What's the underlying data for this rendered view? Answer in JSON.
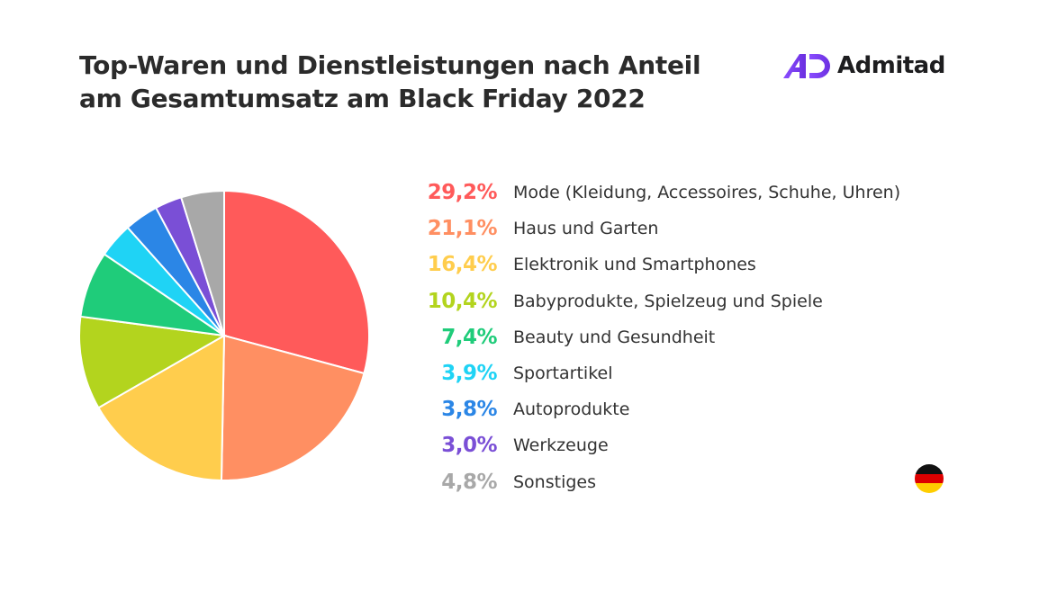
{
  "header": {
    "title_line1": "Top-Waren und Dienstleistungen nach Anteil",
    "title_line2": "am Gesamtumsatz am Black Friday 2022",
    "logo_text": "Admitad",
    "logo_color": "#7b3fe4"
  },
  "chart_data": {
    "type": "pie",
    "title": "Top-Waren und Dienstleistungen nach Anteil am Gesamtumsatz am Black Friday 2022",
    "start": "top",
    "direction": "clockwise",
    "legend": "right",
    "slices": [
      {
        "label": "Mode (Kleidung, Accessoires, Schuhe, Uhren)",
        "value": 29.2,
        "display": "29,2%",
        "color": "#ff5a5a"
      },
      {
        "label": "Haus und Garten",
        "value": 21.1,
        "display": "21,1%",
        "color": "#ff8f62"
      },
      {
        "label": "Elektronik und Smartphones",
        "value": 16.4,
        "display": "16,4%",
        "color": "#ffcd4d"
      },
      {
        "label": "Babyprodukte, Spielzeug und Spiele",
        "value": 10.4,
        "display": "10,4%",
        "color": "#b3d41e"
      },
      {
        "label": "Beauty und Gesundheit",
        "value": 7.4,
        "display": "7,4%",
        "color": "#1fcc7a"
      },
      {
        "label": "Sportartikel",
        "value": 3.9,
        "display": "3,9%",
        "color": "#1fd3f5"
      },
      {
        "label": "Autoprodukte",
        "value": 3.8,
        "display": "3,8%",
        "color": "#2b86e6"
      },
      {
        "label": "Werkzeuge",
        "value": 3.0,
        "display": "3,0%",
        "color": "#7a4fd6"
      },
      {
        "label": "Sonstiges",
        "value": 4.8,
        "display": "4,8%",
        "color": "#a8a8a8"
      }
    ]
  },
  "flag": {
    "country": "Germany",
    "colors": [
      "#000000",
      "#dd0000",
      "#ffce00"
    ]
  }
}
